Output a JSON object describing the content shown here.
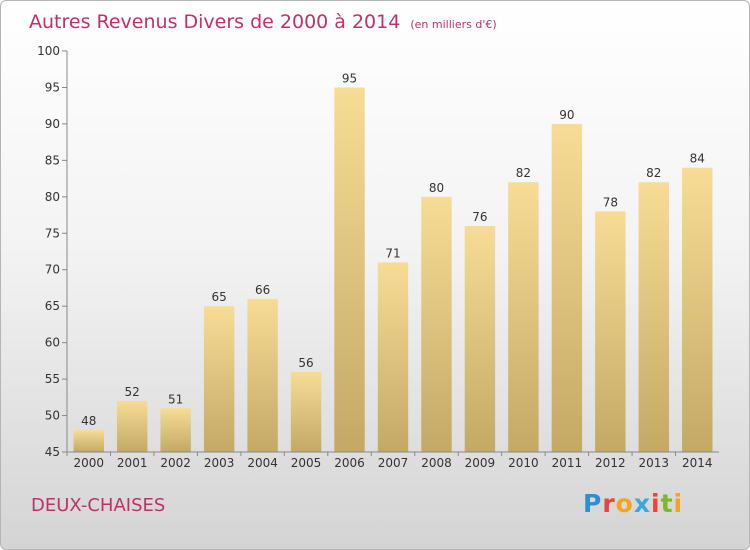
{
  "chart_data": {
    "type": "bar",
    "title": "Autres Revenus Divers de 2000 à 2014",
    "unit_note": "(en milliers d'€)",
    "categories": [
      "2000",
      "2001",
      "2002",
      "2003",
      "2004",
      "2005",
      "2006",
      "2007",
      "2008",
      "2009",
      "2010",
      "2011",
      "2012",
      "2013",
      "2014"
    ],
    "values": [
      48,
      52,
      51,
      65,
      66,
      56,
      95,
      71,
      80,
      76,
      82,
      90,
      78,
      82,
      84
    ],
    "ylim": [
      45,
      100
    ],
    "yticks": [
      45,
      50,
      55,
      60,
      65,
      70,
      75,
      80,
      85,
      90,
      95,
      100
    ],
    "grid": false,
    "data_labels": true,
    "bar_color_top": "#f7dc96",
    "bar_color_bottom": "#c4a964",
    "title_color": "#c0306a"
  },
  "footer": {
    "location": "DEUX-CHAISES",
    "brand": "Proxiti",
    "brand_letter_colors": [
      "#2a8fd6",
      "#e8453c",
      "#f3a51c",
      "#3aa8e0",
      "#e8453c",
      "#7bb82a",
      "#f3a51c"
    ]
  }
}
